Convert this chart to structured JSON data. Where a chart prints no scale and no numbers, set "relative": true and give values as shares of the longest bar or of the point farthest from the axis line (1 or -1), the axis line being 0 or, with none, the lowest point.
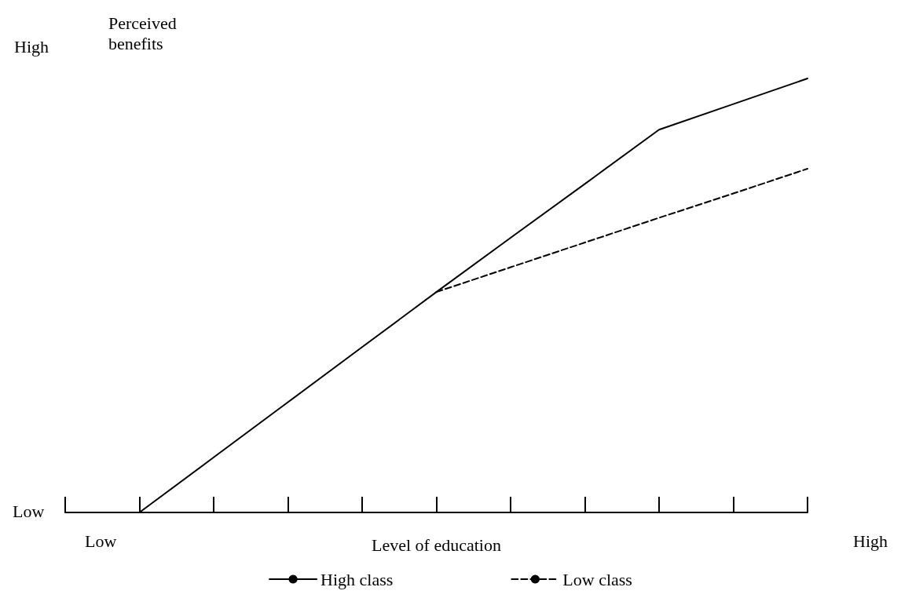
{
  "chart_data": {
    "type": "line",
    "relative": true,
    "xlabel": "Level of education",
    "ylabel": "Perceived benefits",
    "annotations": [
      "High",
      "Low",
      "Low",
      "High"
    ],
    "categories": [
      null,
      null,
      null,
      null,
      null,
      null,
      null,
      null,
      null,
      null,
      null
    ],
    "series": [
      {
        "name": "High class",
        "color": "#000000",
        "line_style": "solid",
        "values": [
          null,
          0,
          0.127,
          0.254,
          0.381,
          0.508,
          0.633,
          0.757,
          0.882,
          0.941,
          1
        ]
      },
      {
        "name": "Low class",
        "color": "#000000",
        "line_style": "dashed",
        "values": [
          null,
          null,
          null,
          null,
          null,
          0.508,
          0.565,
          0.622,
          0.679,
          0.735,
          0.792
        ]
      }
    ],
    "legend": "bottom",
    "grid": false,
    "marker": "none"
  }
}
